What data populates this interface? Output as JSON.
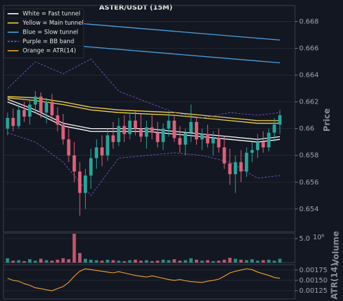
{
  "chart_data": [
    {
      "type": "candlestick",
      "title": "ASTER/USDT (15M)",
      "ylabel": "Price",
      "ylim": [
        0.6523,
        0.6692
      ],
      "yticks": [
        0.654,
        0.656,
        0.658,
        0.66,
        0.662,
        0.664,
        0.666,
        0.668
      ],
      "grid": true,
      "up_color": "#26a69a",
      "down_color": "#e0607a",
      "legend": "upper left",
      "x": [
        0,
        1,
        2,
        3,
        4,
        5,
        6,
        7,
        8,
        9,
        10,
        11,
        12,
        13,
        14,
        15,
        16,
        17,
        18,
        19,
        20,
        21,
        22,
        23,
        24,
        25,
        26,
        27,
        28,
        29,
        30,
        31,
        32,
        33,
        34,
        35,
        36,
        37,
        38,
        39,
        40,
        41,
        42,
        43,
        44,
        45,
        46,
        47,
        48,
        49
      ],
      "ohlc": [
        [
          0.66,
          0.6612,
          0.6595,
          0.6608
        ],
        [
          0.6608,
          0.6615,
          0.6598,
          0.6602
        ],
        [
          0.6602,
          0.6618,
          0.66,
          0.6614
        ],
        [
          0.6614,
          0.662,
          0.6605,
          0.6609
        ],
        [
          0.6609,
          0.6622,
          0.6603,
          0.6618
        ],
        [
          0.6618,
          0.6628,
          0.6612,
          0.6624
        ],
        [
          0.6624,
          0.6627,
          0.6608,
          0.6612
        ],
        [
          0.6612,
          0.6623,
          0.6604,
          0.662
        ],
        [
          0.662,
          0.6626,
          0.6606,
          0.661
        ],
        [
          0.661,
          0.6616,
          0.6598,
          0.6603
        ],
        [
          0.6603,
          0.6611,
          0.6588,
          0.6592
        ],
        [
          0.6592,
          0.66,
          0.6575,
          0.658
        ],
        [
          0.658,
          0.659,
          0.656,
          0.6568
        ],
        [
          0.6568,
          0.6575,
          0.6535,
          0.6552
        ],
        [
          0.6552,
          0.657,
          0.654,
          0.6565
        ],
        [
          0.6565,
          0.6585,
          0.6555,
          0.6578
        ],
        [
          0.6578,
          0.6592,
          0.657,
          0.6586
        ],
        [
          0.6586,
          0.6595,
          0.6572,
          0.658
        ],
        [
          0.658,
          0.66,
          0.6576,
          0.6595
        ],
        [
          0.6595,
          0.6605,
          0.6585,
          0.659
        ],
        [
          0.659,
          0.6608,
          0.6587,
          0.6602
        ],
        [
          0.6602,
          0.661,
          0.659,
          0.6596
        ],
        [
          0.6596,
          0.6612,
          0.6592,
          0.6606
        ],
        [
          0.6606,
          0.6614,
          0.6595,
          0.66
        ],
        [
          0.66,
          0.6611,
          0.659,
          0.6594
        ],
        [
          0.6594,
          0.6606,
          0.6585,
          0.6601
        ],
        [
          0.6601,
          0.661,
          0.6592,
          0.6597
        ],
        [
          0.6597,
          0.6605,
          0.6586,
          0.659
        ],
        [
          0.659,
          0.6604,
          0.6584,
          0.66
        ],
        [
          0.66,
          0.6612,
          0.6594,
          0.6606
        ],
        [
          0.6606,
          0.661,
          0.659,
          0.6593
        ],
        [
          0.6593,
          0.6602,
          0.6582,
          0.6588
        ],
        [
          0.6588,
          0.66,
          0.658,
          0.6597
        ],
        [
          0.6597,
          0.6618,
          0.659,
          0.6605
        ],
        [
          0.6605,
          0.6609,
          0.6588,
          0.6592
        ],
        [
          0.6592,
          0.66,
          0.6584,
          0.6596
        ],
        [
          0.6596,
          0.6603,
          0.6586,
          0.6589
        ],
        [
          0.6589,
          0.6598,
          0.658,
          0.6593
        ],
        [
          0.6593,
          0.66,
          0.6582,
          0.6586
        ],
        [
          0.6586,
          0.6594,
          0.657,
          0.6574
        ],
        [
          0.6574,
          0.6585,
          0.6558,
          0.6566
        ],
        [
          0.6566,
          0.658,
          0.6552,
          0.6575
        ],
        [
          0.6575,
          0.6584,
          0.656,
          0.6568
        ],
        [
          0.6568,
          0.6586,
          0.6564,
          0.6582
        ],
        [
          0.6582,
          0.659,
          0.6575,
          0.6584
        ],
        [
          0.6584,
          0.6596,
          0.6578,
          0.659
        ],
        [
          0.659,
          0.6598,
          0.6582,
          0.6586
        ],
        [
          0.6586,
          0.66,
          0.6583,
          0.6597
        ],
        [
          0.6597,
          0.6608,
          0.659,
          0.6603
        ],
        [
          0.6603,
          0.6614,
          0.6596,
          0.661
        ]
      ],
      "series": [
        {
          "name": "White = Fast tunnel",
          "color": "#ffffff",
          "linestyle": "solid",
          "x": [
            0,
            5,
            10,
            15,
            20,
            25,
            30,
            35,
            40,
            45,
            49
          ],
          "upper": [
            0.6622,
            0.6614,
            0.6604,
            0.66,
            0.66,
            0.66,
            0.6598,
            0.6596,
            0.6594,
            0.6592,
            0.6594
          ],
          "lower": [
            0.662,
            0.6612,
            0.6602,
            0.6598,
            0.6598,
            0.6598,
            0.6596,
            0.6594,
            0.6592,
            0.659,
            0.6592
          ]
        },
        {
          "name": "Yellow = Main tunnel",
          "color": "#f5d442",
          "linestyle": "solid",
          "x": [
            0,
            5,
            10,
            15,
            20,
            25,
            30,
            35,
            40,
            45,
            49
          ],
          "upper": [
            0.6624,
            0.6623,
            0.662,
            0.6616,
            0.6614,
            0.6613,
            0.6612,
            0.661,
            0.6608,
            0.6606,
            0.6606
          ],
          "lower": [
            0.6623,
            0.6621,
            0.6618,
            0.6614,
            0.6612,
            0.6611,
            0.661,
            0.6608,
            0.6606,
            0.6604,
            0.6604
          ]
        },
        {
          "name": "Blue = Slow tunnel",
          "color": "#4aa3e8",
          "linestyle": "solid",
          "x": [
            0,
            49
          ],
          "upper": [
            0.66831,
            0.66662
          ],
          "lower": [
            0.66662,
            0.66492
          ]
        },
        {
          "name": "Purple = BB band",
          "color": "#7a5ad8",
          "linestyle": "dashed",
          "x": [
            0,
            5,
            10,
            15,
            20,
            25,
            30,
            35,
            40,
            45,
            49
          ],
          "upper": [
            0.663,
            0.665,
            0.6641,
            0.6652,
            0.6628,
            0.662,
            0.6612,
            0.6608,
            0.6612,
            0.661,
            0.6612
          ],
          "lower": [
            0.6597,
            0.659,
            0.6575,
            0.655,
            0.6578,
            0.658,
            0.6582,
            0.658,
            0.6575,
            0.6563,
            0.6565
          ]
        }
      ]
    },
    {
      "type": "bar",
      "ylabel": "Volume",
      "offset_label": "10⁶",
      "ylim": [
        0,
        6.14
      ],
      "yticks": [
        {
          "value": 5,
          "label": "5.0"
        }
      ],
      "grid": true,
      "values": [
        0.9,
        0.4,
        0.5,
        0.3,
        0.7,
        0.4,
        0.8,
        0.5,
        0.4,
        0.6,
        0.9,
        0.7,
        6.0,
        2.0,
        0.8,
        0.6,
        0.5,
        0.4,
        0.6,
        0.5,
        0.4,
        0.3,
        0.5,
        0.6,
        0.4,
        0.5,
        0.3,
        0.4,
        0.6,
        0.5,
        0.7,
        0.4,
        0.5,
        0.9,
        0.6,
        0.4,
        0.5,
        0.3,
        0.4,
        0.6,
        1.0,
        0.8,
        0.6,
        0.5,
        0.7,
        0.4,
        0.5,
        0.6,
        0.4,
        0.8
      ]
    },
    {
      "type": "line",
      "ylabel": "ATR(14)",
      "ylim": [
        0.00105,
        0.00188
      ],
      "yticks": [
        0.00125,
        {
          "value": 0.0015,
          "label": "0.00150"
        },
        0.00175
      ],
      "grid": true,
      "series": [
        {
          "name": "Orange = ATR(14)",
          "color": "#f5a623",
          "values": [
            0.00155,
            0.0015,
            0.00148,
            0.00142,
            0.00138,
            0.00132,
            0.0013,
            0.00127,
            0.00125,
            0.0013,
            0.00135,
            0.00145,
            0.0016,
            0.00172,
            0.00178,
            0.00176,
            0.00174,
            0.00172,
            0.0017,
            0.00168,
            0.00171,
            0.00168,
            0.00165,
            0.00162,
            0.0016,
            0.00158,
            0.00161,
            0.00158,
            0.00155,
            0.00152,
            0.0015,
            0.00152,
            0.00149,
            0.00147,
            0.00146,
            0.00145,
            0.00148,
            0.0015,
            0.00153,
            0.0016,
            0.00168,
            0.00172,
            0.00175,
            0.00178,
            0.00176,
            0.0017,
            0.00166,
            0.00162,
            0.00157,
            0.00155
          ]
        }
      ]
    }
  ]
}
